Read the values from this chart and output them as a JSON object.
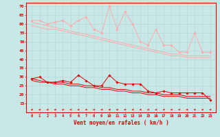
{
  "x": [
    0,
    1,
    2,
    3,
    4,
    5,
    6,
    7,
    8,
    9,
    10,
    11,
    12,
    13,
    14,
    15,
    16,
    17,
    18,
    19,
    20,
    21,
    22,
    23
  ],
  "series_rafales": [
    62,
    62,
    60,
    61,
    62,
    59,
    62,
    64,
    57,
    55,
    70,
    57,
    67,
    60,
    50,
    48,
    57,
    48,
    48,
    44,
    44,
    55,
    44,
    44
  ],
  "series_trend_upper": [
    61,
    60,
    59,
    58,
    57,
    56,
    55,
    54,
    53,
    52,
    51,
    50,
    49,
    48,
    47,
    46,
    45,
    44,
    43,
    43,
    42,
    42,
    42,
    42
  ],
  "series_trend_lower": [
    59,
    58,
    57,
    57,
    56,
    55,
    54,
    53,
    52,
    51,
    50,
    49,
    48,
    47,
    46,
    45,
    44,
    43,
    42,
    42,
    41,
    41,
    41,
    41
  ],
  "series_moyen": [
    29,
    30,
    27,
    27,
    28,
    27,
    31,
    28,
    25,
    25,
    31,
    27,
    26,
    26,
    26,
    22,
    21,
    22,
    21,
    21,
    21,
    21,
    21,
    17
  ],
  "series_trend_moyen_upper": [
    29,
    28,
    27,
    27,
    27,
    26,
    26,
    25,
    25,
    24,
    24,
    23,
    23,
    22,
    22,
    21,
    21,
    20,
    20,
    20,
    19,
    19,
    19,
    19
  ],
  "series_trend_moyen_lower": [
    28,
    27,
    27,
    26,
    26,
    25,
    25,
    24,
    24,
    23,
    23,
    22,
    22,
    21,
    21,
    20,
    20,
    19,
    19,
    19,
    18,
    18,
    18,
    18
  ],
  "xlabel": "Vent moyen/en rafales ( km/h )",
  "ylim": [
    10,
    72
  ],
  "yticks": [
    15,
    20,
    25,
    30,
    35,
    40,
    45,
    50,
    55,
    60,
    65,
    70
  ],
  "background_color": "#c8e8e8",
  "grid_color": "#b8d8d8",
  "color_rafales": "#ffaaaa",
  "color_moyen": "#dd0000",
  "arrow_color": "#dd0000"
}
